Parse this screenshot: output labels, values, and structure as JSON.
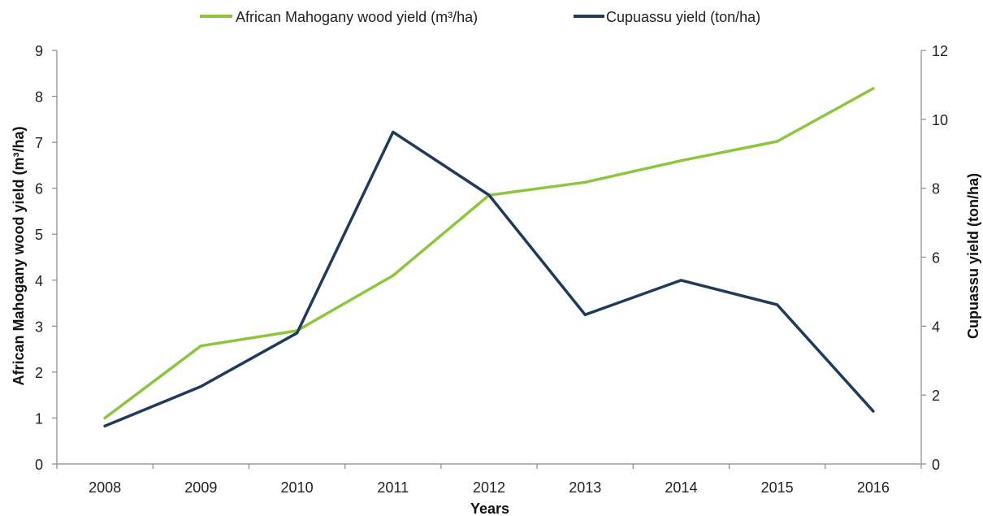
{
  "chart_data": {
    "type": "line",
    "x": [
      "2008",
      "2009",
      "2010",
      "2011",
      "2012",
      "2013",
      "2014",
      "2015",
      "2016"
    ],
    "xlabel": "Years",
    "ylabel_left": "African Mahogany wood yield (m³/ha)",
    "ylabel_right": "Cupuassu yield (ton/ha)",
    "ylim_left": [
      0,
      9
    ],
    "ylim_right": [
      0,
      12
    ],
    "yticks_left": [
      "0",
      "1",
      "2",
      "3",
      "4",
      "5",
      "6",
      "7",
      "8",
      "9"
    ],
    "yticks_right": [
      "0",
      "2",
      "4",
      "6",
      "8",
      "10",
      "12"
    ],
    "grid": false,
    "legend_position": "top-center",
    "series": [
      {
        "name": "African Mahogany wood yield (m³/ha)",
        "axis": "left",
        "color": "#8cc63f",
        "values": [
          1.0,
          2.57,
          2.9,
          4.1,
          5.85,
          6.13,
          6.6,
          7.02,
          8.17
        ]
      },
      {
        "name": "Cupuassu yield (ton/ha)",
        "axis": "right",
        "color": "#1f3a5a",
        "values": [
          1.1,
          2.25,
          3.8,
          9.63,
          7.8,
          4.33,
          5.33,
          4.62,
          1.53
        ]
      }
    ]
  }
}
